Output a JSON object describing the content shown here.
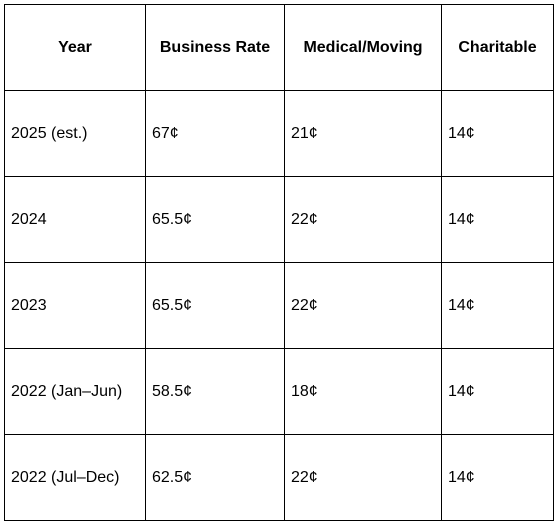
{
  "table": {
    "headers": [
      "Year",
      "Business Rate",
      "Medical/Moving",
      "Charitable"
    ],
    "rows": [
      [
        "2025 (est.)",
        "67¢",
        "21¢",
        "14¢"
      ],
      [
        "2024",
        "65.5¢",
        "22¢",
        "14¢"
      ],
      [
        "2023",
        "65.5¢",
        "22¢",
        "14¢"
      ],
      [
        "2022 (Jan–Jun)",
        "58.5¢",
        "18¢",
        "14¢"
      ],
      [
        "2022 (Jul–Dec)",
        "62.5¢",
        "22¢",
        "14¢"
      ]
    ]
  }
}
